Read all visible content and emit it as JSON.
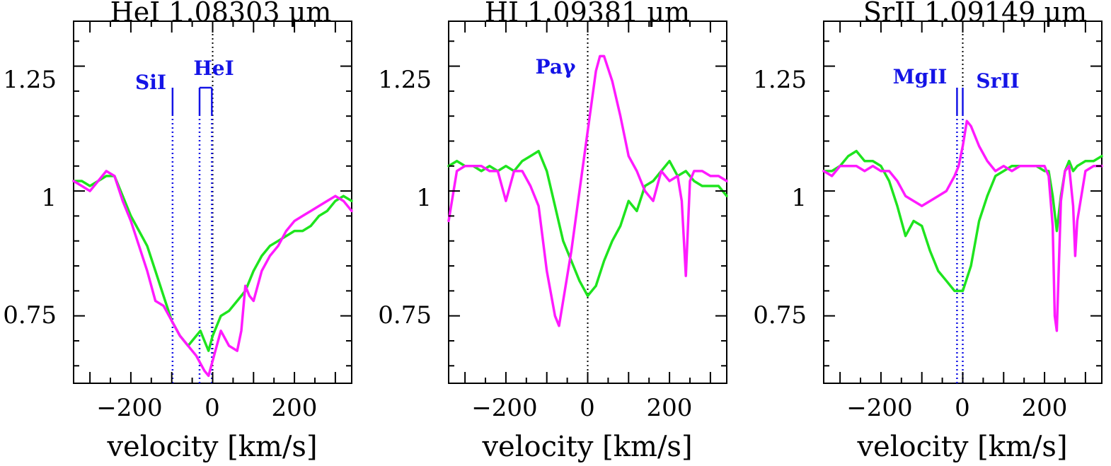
{
  "figure": {
    "xlabel": "velocity [km/s]"
  },
  "colors": {
    "series_a": "#1ee41e",
    "series_b": "#ff1aff",
    "marker": "#1414e6",
    "axis": "#000000"
  },
  "chart_data": [
    {
      "type": "line",
      "title": "HeI  1.08303 μm",
      "xlabel": "velocity [km/s]",
      "ylabel": "",
      "xlim": [
        -340,
        340
      ],
      "ylim": [
        0.615,
        1.34
      ],
      "xticks": [
        -200,
        0,
        200
      ],
      "xtick_labels": [
        "−200",
        "0",
        "200"
      ],
      "yticks": [
        0.75,
        1,
        1.25
      ],
      "ytick_labels": [
        "0.75",
        "1",
        "1.25"
      ],
      "zero_line": true,
      "series": [
        {
          "name": "green",
          "color": "#1ee41e",
          "x": [
            -340,
            -320,
            -300,
            -280,
            -260,
            -240,
            -220,
            -200,
            -180,
            -160,
            -140,
            -120,
            -100,
            -80,
            -60,
            -40,
            -30,
            -20,
            -10,
            0,
            20,
            40,
            60,
            80,
            100,
            120,
            140,
            160,
            180,
            200,
            220,
            240,
            260,
            280,
            300,
            320,
            340
          ],
          "y": [
            1.02,
            1.02,
            1.01,
            1.02,
            1.03,
            1.03,
            0.99,
            0.95,
            0.92,
            0.89,
            0.84,
            0.79,
            0.74,
            0.71,
            0.69,
            0.71,
            0.72,
            0.7,
            0.68,
            0.71,
            0.75,
            0.76,
            0.78,
            0.8,
            0.84,
            0.87,
            0.89,
            0.9,
            0.91,
            0.92,
            0.92,
            0.93,
            0.95,
            0.96,
            0.98,
            0.99,
            0.98
          ]
        },
        {
          "name": "magenta",
          "color": "#ff1aff",
          "x": [
            -340,
            -320,
            -300,
            -280,
            -260,
            -240,
            -220,
            -200,
            -180,
            -160,
            -140,
            -120,
            -100,
            -80,
            -60,
            -40,
            -20,
            -10,
            0,
            20,
            40,
            60,
            70,
            80,
            90,
            100,
            120,
            140,
            160,
            180,
            200,
            220,
            240,
            260,
            280,
            300,
            320,
            340
          ],
          "y": [
            1.02,
            1.01,
            1.0,
            1.02,
            1.04,
            1.03,
            0.98,
            0.94,
            0.89,
            0.84,
            0.78,
            0.77,
            0.74,
            0.71,
            0.69,
            0.67,
            0.64,
            0.63,
            0.66,
            0.72,
            0.69,
            0.68,
            0.72,
            0.81,
            0.79,
            0.78,
            0.84,
            0.87,
            0.89,
            0.92,
            0.94,
            0.95,
            0.96,
            0.97,
            0.98,
            0.99,
            0.98,
            0.96
          ]
        }
      ],
      "markers": [
        {
          "label": "SiI",
          "ticks": [
            -98
          ],
          "bracket": false
        },
        {
          "label": "HeI",
          "ticks": [
            -32,
            -2
          ],
          "bracket": true
        }
      ]
    },
    {
      "type": "line",
      "title": "HI  1.09381 μm",
      "xlabel": "velocity [km/s]",
      "ylabel": "",
      "xlim": [
        -340,
        340
      ],
      "ylim": [
        0.615,
        1.34
      ],
      "xticks": [
        -200,
        0,
        200
      ],
      "xtick_labels": [
        "−200",
        "0",
        "200"
      ],
      "yticks": [
        0.75,
        1,
        1.25
      ],
      "ytick_labels": [
        "0.75",
        "1",
        "1.25"
      ],
      "zero_line": true,
      "series": [
        {
          "name": "green",
          "color": "#1ee41e",
          "x": [
            -340,
            -320,
            -300,
            -280,
            -260,
            -240,
            -220,
            -200,
            -180,
            -160,
            -140,
            -120,
            -100,
            -80,
            -60,
            -40,
            -20,
            0,
            20,
            40,
            60,
            80,
            100,
            120,
            140,
            160,
            180,
            200,
            220,
            240,
            260,
            280,
            300,
            320,
            340
          ],
          "y": [
            1.05,
            1.06,
            1.05,
            1.05,
            1.04,
            1.05,
            1.04,
            1.05,
            1.04,
            1.06,
            1.07,
            1.08,
            1.04,
            0.97,
            0.9,
            0.86,
            0.82,
            0.79,
            0.81,
            0.86,
            0.9,
            0.93,
            0.98,
            0.96,
            1.01,
            1.02,
            1.04,
            1.06,
            1.03,
            1.04,
            1.02,
            1.01,
            1.01,
            1.01,
            0.99
          ]
        },
        {
          "name": "magenta",
          "color": "#ff1aff",
          "x": [
            -340,
            -320,
            -300,
            -280,
            -260,
            -240,
            -220,
            -200,
            -180,
            -160,
            -140,
            -120,
            -100,
            -80,
            -70,
            -60,
            -40,
            -20,
            0,
            20,
            30,
            40,
            60,
            80,
            100,
            120,
            140,
            160,
            180,
            200,
            220,
            230,
            240,
            250,
            260,
            280,
            300,
            320,
            340
          ],
          "y": [
            0.94,
            1.04,
            1.05,
            1.05,
            1.05,
            1.04,
            1.04,
            0.98,
            1.04,
            1.04,
            1.01,
            0.97,
            0.84,
            0.75,
            0.73,
            0.78,
            0.88,
            1.0,
            1.12,
            1.24,
            1.27,
            1.27,
            1.22,
            1.15,
            1.07,
            1.04,
            1.0,
            0.98,
            1.04,
            1.02,
            1.03,
            0.98,
            0.83,
            1.02,
            1.04,
            1.04,
            1.03,
            1.03,
            1.02
          ]
        }
      ],
      "markers": [
        {
          "label": "Paγ",
          "ticks": [],
          "bracket": false
        }
      ]
    },
    {
      "type": "line",
      "title": "SrII  1.09149 μm",
      "xlabel": "velocity [km/s]",
      "ylabel": "",
      "xlim": [
        -340,
        340
      ],
      "ylim": [
        0.615,
        1.34
      ],
      "xticks": [
        -200,
        0,
        200
      ],
      "xtick_labels": [
        "−200",
        "0",
        "200"
      ],
      "yticks": [
        0.75,
        1,
        1.25
      ],
      "ytick_labels": [
        "0.75",
        "1",
        "1.25"
      ],
      "zero_line": true,
      "series": [
        {
          "name": "green",
          "color": "#1ee41e",
          "x": [
            -340,
            -320,
            -300,
            -280,
            -260,
            -240,
            -220,
            -200,
            -180,
            -160,
            -140,
            -120,
            -100,
            -80,
            -60,
            -40,
            -20,
            0,
            20,
            40,
            60,
            80,
            100,
            120,
            140,
            160,
            180,
            200,
            210,
            220,
            230,
            240,
            250,
            260,
            270,
            280,
            300,
            320,
            340
          ],
          "y": [
            1.04,
            1.04,
            1.05,
            1.07,
            1.08,
            1.06,
            1.06,
            1.05,
            1.02,
            0.97,
            0.91,
            0.94,
            0.93,
            0.88,
            0.84,
            0.82,
            0.8,
            0.8,
            0.85,
            0.94,
            0.99,
            1.03,
            1.04,
            1.05,
            1.05,
            1.05,
            1.05,
            1.04,
            1.04,
            0.99,
            0.92,
            0.99,
            1.04,
            1.06,
            1.04,
            1.05,
            1.06,
            1.06,
            1.07
          ]
        },
        {
          "name": "magenta",
          "color": "#ff1aff",
          "x": [
            -340,
            -320,
            -300,
            -280,
            -260,
            -240,
            -220,
            -200,
            -180,
            -160,
            -140,
            -120,
            -100,
            -80,
            -60,
            -40,
            -20,
            -10,
            0,
            10,
            20,
            40,
            60,
            80,
            100,
            120,
            140,
            160,
            180,
            200,
            210,
            220,
            225,
            230,
            240,
            250,
            260,
            270,
            275,
            280,
            300,
            320,
            340
          ],
          "y": [
            1.04,
            1.03,
            1.05,
            1.05,
            1.05,
            1.04,
            1.05,
            1.04,
            1.04,
            1.02,
            0.99,
            0.98,
            0.97,
            0.98,
            0.99,
            1.0,
            1.03,
            1.05,
            1.09,
            1.14,
            1.13,
            1.09,
            1.06,
            1.04,
            1.05,
            1.04,
            1.05,
            1.05,
            1.05,
            1.05,
            1.03,
            0.93,
            0.75,
            0.72,
            0.98,
            1.04,
            1.05,
            0.97,
            0.87,
            0.94,
            1.04,
            1.05,
            1.05
          ]
        }
      ],
      "markers": [
        {
          "label": "MgII",
          "ticks": [
            -14,
            0
          ],
          "bracket": false
        },
        {
          "label": "SrII",
          "ticks": [],
          "bracket": false
        }
      ]
    }
  ]
}
